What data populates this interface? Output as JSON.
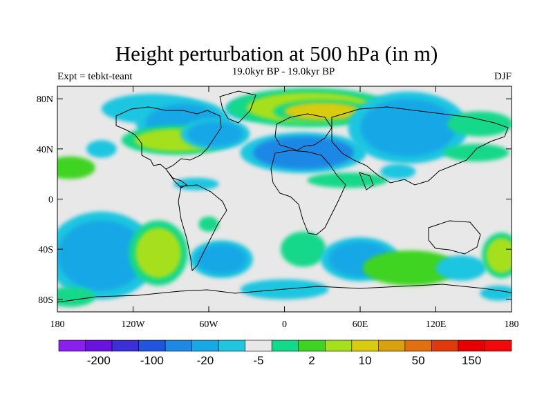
{
  "title": "Height perturbation at 500 hPa (in m)",
  "left_label": "Expt = tebkt-teant",
  "center_label": "19.0kyr BP - 19.0kyr BP",
  "right_label": "DJF",
  "map": {
    "projection": "cylindrical equidistant",
    "lon_range": [
      -180,
      180
    ],
    "lat_range": [
      -90,
      90
    ],
    "x_ticks": [
      {
        "lon": -180,
        "label": "180"
      },
      {
        "lon": -120,
        "label": "120W"
      },
      {
        "lon": -60,
        "label": "60W"
      },
      {
        "lon": 0,
        "label": "0"
      },
      {
        "lon": 60,
        "label": "60E"
      },
      {
        "lon": 120,
        "label": "120E"
      },
      {
        "lon": 180,
        "label": "180"
      }
    ],
    "y_ticks": [
      {
        "lat": 80,
        "label": "80N"
      },
      {
        "lat": 40,
        "label": "40N"
      },
      {
        "lat": 0,
        "label": "0"
      },
      {
        "lat": -40,
        "label": "40S"
      },
      {
        "lat": -80,
        "label": "80S"
      }
    ]
  },
  "colorbar": {
    "colors": [
      "#8b1ff0",
      "#6a12e0",
      "#3d2fd8",
      "#1f55df",
      "#1e88e5",
      "#17a8e6",
      "#1ec6e0",
      "#e8e8e8",
      "#14d88a",
      "#3fd421",
      "#a6e01c",
      "#d9cb0d",
      "#d9a10d",
      "#e2700f",
      "#e03a0c",
      "#e80000",
      "#f20a0a"
    ],
    "labels": [
      {
        "boundary": 1,
        "text": "-200"
      },
      {
        "boundary": 3,
        "text": "-100"
      },
      {
        "boundary": 5,
        "text": "-20"
      },
      {
        "boundary": 7,
        "text": "-5"
      },
      {
        "boundary": 9,
        "text": "2"
      },
      {
        "boundary": 11,
        "text": "10"
      },
      {
        "boundary": 13,
        "text": "50"
      },
      {
        "boundary": 15,
        "text": "150"
      }
    ]
  },
  "anomalies": [
    {
      "lon": -105,
      "lat": 72,
      "rx": 40,
      "ry": 12,
      "level": -4
    },
    {
      "lon": -80,
      "lat": 60,
      "rx": 30,
      "ry": 16,
      "level": -5
    },
    {
      "lon": -145,
      "lat": 40,
      "rx": 12,
      "ry": 7,
      "level": -4
    },
    {
      "lon": -85,
      "lat": 47,
      "rx": 34,
      "ry": 9,
      "level": 3
    },
    {
      "lon": -55,
      "lat": 52,
      "rx": 22,
      "ry": 10,
      "level": -5
    },
    {
      "lon": -25,
      "lat": 72,
      "rx": 22,
      "ry": 9,
      "level": -4
    },
    {
      "lon": 20,
      "lat": 73,
      "rx": 50,
      "ry": 12,
      "level": 3
    },
    {
      "lon": 30,
      "lat": 70,
      "rx": 30,
      "ry": 7,
      "level": 4
    },
    {
      "lon": 15,
      "lat": 37,
      "rx": 40,
      "ry": 13,
      "level": -6
    },
    {
      "lon": 50,
      "lat": 15,
      "rx": 32,
      "ry": 6,
      "level": 1
    },
    {
      "lon": 98,
      "lat": 57,
      "rx": 38,
      "ry": 23,
      "level": -5
    },
    {
      "lon": 155,
      "lat": 60,
      "rx": 26,
      "ry": 10,
      "level": 1
    },
    {
      "lon": 152,
      "lat": 37,
      "rx": 26,
      "ry": 7,
      "level": 1
    },
    {
      "lon": -170,
      "lat": 25,
      "rx": 20,
      "ry": 9,
      "level": 2
    },
    {
      "lon": 90,
      "lat": 22,
      "rx": 14,
      "ry": 6,
      "level": -4
    },
    {
      "lon": -70,
      "lat": 12,
      "rx": 18,
      "ry": 5,
      "level": -4
    },
    {
      "lon": -145,
      "lat": -45,
      "rx": 35,
      "ry": 28,
      "level": -5
    },
    {
      "lon": -100,
      "lat": -43,
      "rx": 18,
      "ry": 20,
      "level": 3
    },
    {
      "lon": -50,
      "lat": -48,
      "rx": 20,
      "ry": 12,
      "level": -5
    },
    {
      "lon": -60,
      "lat": -20,
      "rx": 8,
      "ry": 6,
      "level": 1
    },
    {
      "lon": 15,
      "lat": -40,
      "rx": 18,
      "ry": 14,
      "level": 1
    },
    {
      "lon": 60,
      "lat": -48,
      "rx": 25,
      "ry": 14,
      "level": -5
    },
    {
      "lon": 100,
      "lat": -55,
      "rx": 38,
      "ry": 14,
      "level": 2
    },
    {
      "lon": 140,
      "lat": -55,
      "rx": 20,
      "ry": 10,
      "level": -4
    },
    {
      "lon": 172,
      "lat": -45,
      "rx": 12,
      "ry": 14,
      "level": 3
    },
    {
      "lon": 170,
      "lat": -75,
      "rx": 15,
      "ry": 6,
      "level": -4
    },
    {
      "lon": 0,
      "lat": -72,
      "rx": 35,
      "ry": 8,
      "level": -4
    },
    {
      "lon": -170,
      "lat": -78,
      "rx": 20,
      "ry": 8,
      "level": 1
    }
  ]
}
